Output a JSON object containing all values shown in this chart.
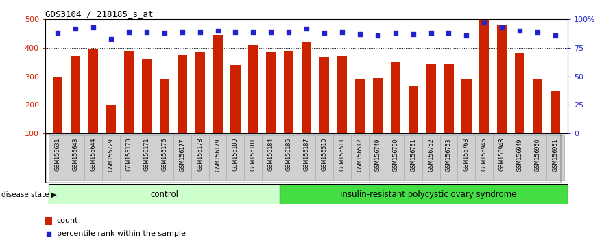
{
  "title": "GDS3104 / 218185_s_at",
  "categories": [
    "GSM155631",
    "GSM155643",
    "GSM155644",
    "GSM155729",
    "GSM156170",
    "GSM156171",
    "GSM156176",
    "GSM156177",
    "GSM156178",
    "GSM156179",
    "GSM156180",
    "GSM156181",
    "GSM156184",
    "GSM156186",
    "GSM156187",
    "GSM156510",
    "GSM156511",
    "GSM156512",
    "GSM156749",
    "GSM156750",
    "GSM156751",
    "GSM156752",
    "GSM156753",
    "GSM156763",
    "GSM156946",
    "GSM156948",
    "GSM156949",
    "GSM156950",
    "GSM156951"
  ],
  "bar_values": [
    300,
    370,
    395,
    200,
    390,
    360,
    290,
    375,
    385,
    445,
    340,
    410,
    385,
    390,
    420,
    365,
    370,
    290,
    295,
    350,
    265,
    345,
    345,
    290,
    500,
    480,
    380,
    290,
    248
  ],
  "percentile_values": [
    88,
    92,
    93,
    83,
    89,
    89,
    88,
    89,
    89,
    90,
    89,
    89,
    89,
    89,
    92,
    88,
    89,
    87,
    86,
    88,
    87,
    88,
    88,
    86,
    97,
    93,
    90,
    89,
    86
  ],
  "bar_color": "#CC2200",
  "percentile_color": "#2222CC",
  "control_count": 13,
  "control_label": "control",
  "disease_label": "insulin-resistant polycystic ovary syndrome",
  "disease_state_label": "disease state",
  "ylim_left": [
    100,
    500
  ],
  "ylim_right": [
    0,
    100
  ],
  "yticks_left": [
    100,
    200,
    300,
    400,
    500
  ],
  "yticks_right": [
    0,
    25,
    50,
    75,
    100
  ],
  "ytick_right_labels": [
    "0",
    "25",
    "50",
    "75",
    "100%"
  ],
  "legend_count": "count",
  "legend_percentile": "percentile rank within the sample",
  "background_color": "#ffffff",
  "tick_label_color_left": "#CC2200",
  "tick_label_color_right": "#2222CC",
  "control_bg": "#ccffcc",
  "disease_bg": "#44dd44",
  "xtick_bg": "#d0d0d0",
  "fig_width": 8.81,
  "fig_height": 3.54,
  "dpi": 100
}
